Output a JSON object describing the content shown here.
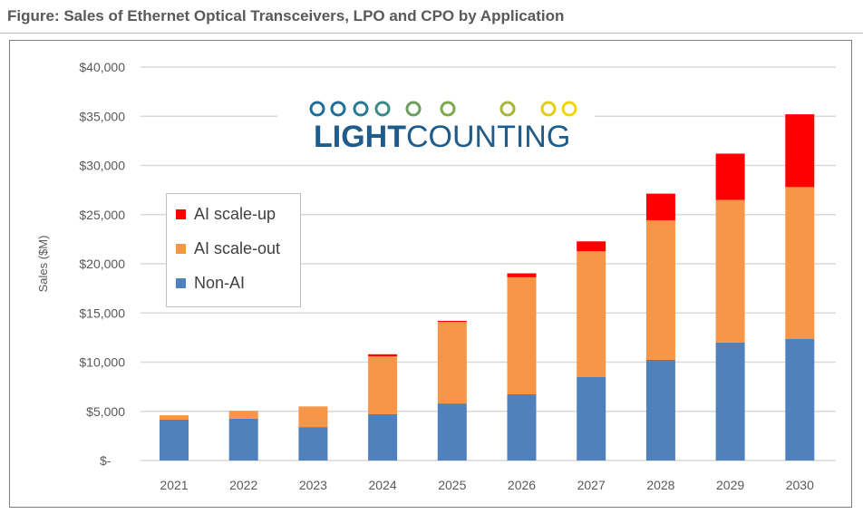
{
  "title": "Figure: Sales of Ethernet Optical Transceivers, LPO and CPO by Application",
  "logo": {
    "text_bold": "LIGHT",
    "text_regular": "COUNTING"
  },
  "chart_data": {
    "type": "bar",
    "stacked": true,
    "title": "Figure: Sales of Ethernet Optical Transceivers, LPO and CPO by Application",
    "xlabel": "",
    "ylabel": "Sales ($M)",
    "ylim": [
      0,
      40000
    ],
    "yticks": [
      0,
      5000,
      10000,
      15000,
      20000,
      25000,
      30000,
      35000,
      40000
    ],
    "ytick_labels": [
      "$-",
      "$5,000",
      "$10,000",
      "$15,000",
      "$20,000",
      "$25,000",
      "$30,000",
      "$35,000",
      "$40,000"
    ],
    "grid": true,
    "legend_position": "top-left",
    "categories": [
      "2021",
      "2022",
      "2023",
      "2024",
      "2025",
      "2026",
      "2027",
      "2028",
      "2029",
      "2030"
    ],
    "series": [
      {
        "name": "Non-AI",
        "color": "#4f81bd",
        "values": [
          4150,
          4250,
          3400,
          4700,
          5800,
          6730,
          8480,
          10230,
          12000,
          12350
        ]
      },
      {
        "name": "AI scale-out",
        "color": "#f79646",
        "values": [
          450,
          800,
          2100,
          5900,
          8300,
          11900,
          12800,
          14200,
          14500,
          15450
        ]
      },
      {
        "name": "AI scale-up",
        "color": "#ff0000",
        "values": [
          0,
          0,
          0,
          200,
          100,
          400,
          1000,
          2700,
          4700,
          7400
        ]
      }
    ],
    "legend_order": [
      "AI scale-up",
      "AI scale-out",
      "Non-AI"
    ]
  }
}
